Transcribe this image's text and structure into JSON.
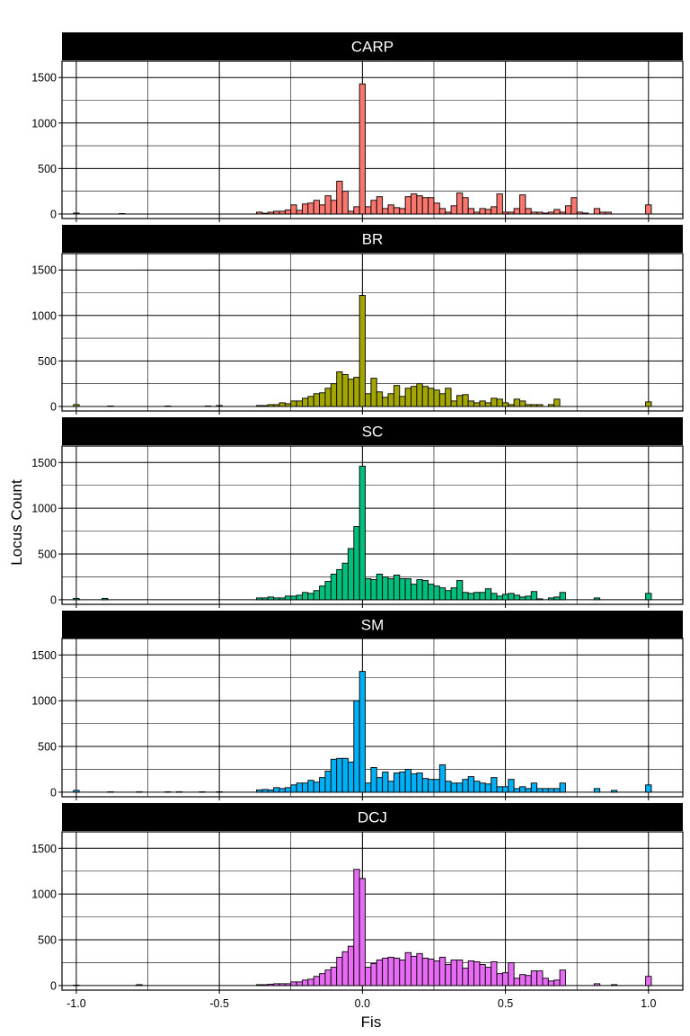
{
  "chart_data": {
    "type": "bar",
    "xlabel": "Fis",
    "ylabel": "Locus Count",
    "xlim": [
      -1.05,
      1.12
    ],
    "ylim": [
      -50,
      1680
    ],
    "x_ticks": [
      -1.0,
      -0.5,
      0.0,
      0.5,
      1.0
    ],
    "x_tick_labels": [
      "-1.0",
      "-0.5",
      "0.0",
      "0.5",
      "1.0"
    ],
    "y_ticks": [
      0,
      500,
      1000,
      1500
    ],
    "y_tick_labels": [
      "0",
      "500",
      "1000",
      "1500"
    ],
    "grid": true,
    "legend": "none",
    "bin_width": 0.02,
    "bin_centers": [
      -1.0,
      -0.98,
      -0.96,
      -0.94,
      -0.92,
      -0.9,
      -0.88,
      -0.86,
      -0.84,
      -0.82,
      -0.8,
      -0.78,
      -0.76,
      -0.74,
      -0.72,
      -0.7,
      -0.68,
      -0.66,
      -0.64,
      -0.62,
      -0.6,
      -0.58,
      -0.56,
      -0.54,
      -0.52,
      -0.5,
      -0.48,
      -0.46,
      -0.44,
      -0.42,
      -0.4,
      -0.38,
      -0.36,
      -0.34,
      -0.32,
      -0.3,
      -0.28,
      -0.26,
      -0.24,
      -0.22,
      -0.2,
      -0.18,
      -0.16,
      -0.14,
      -0.12,
      -0.1,
      -0.08,
      -0.06,
      -0.04,
      -0.02,
      0.0,
      0.02,
      0.04,
      0.06,
      0.08,
      0.1,
      0.12,
      0.14,
      0.16,
      0.18,
      0.2,
      0.22,
      0.24,
      0.26,
      0.28,
      0.3,
      0.32,
      0.34,
      0.36,
      0.38,
      0.4,
      0.42,
      0.44,
      0.46,
      0.48,
      0.5,
      0.52,
      0.54,
      0.56,
      0.58,
      0.6,
      0.62,
      0.64,
      0.66,
      0.68,
      0.7,
      0.72,
      0.74,
      0.76,
      0.78,
      0.8,
      0.82,
      0.84,
      0.86,
      0.88,
      0.9,
      0.92,
      0.94,
      0.96,
      0.98,
      1.0
    ],
    "series": [
      {
        "name": "CARP",
        "color": "#F8766D",
        "values": [
          10,
          0,
          0,
          0,
          0,
          0,
          0,
          0,
          5,
          0,
          0,
          0,
          0,
          0,
          0,
          0,
          0,
          0,
          0,
          0,
          0,
          0,
          0,
          0,
          0,
          0,
          0,
          0,
          0,
          0,
          0,
          0,
          20,
          8,
          20,
          30,
          30,
          45,
          100,
          40,
          110,
          120,
          150,
          100,
          200,
          150,
          360,
          250,
          30,
          80,
          1430,
          80,
          150,
          190,
          60,
          100,
          70,
          60,
          190,
          220,
          200,
          180,
          180,
          120,
          60,
          20,
          90,
          230,
          180,
          60,
          20,
          60,
          50,
          80,
          220,
          20,
          20,
          60,
          210,
          60,
          20,
          20,
          10,
          20,
          50,
          20,
          90,
          180,
          20,
          10,
          0,
          60,
          20,
          20,
          0,
          0,
          0,
          0,
          0,
          0,
          100
        ]
      },
      {
        "name": "BR",
        "color": "#A3A500",
        "values": [
          20,
          0,
          0,
          0,
          0,
          0,
          5,
          0,
          0,
          0,
          0,
          0,
          0,
          0,
          0,
          0,
          5,
          0,
          0,
          0,
          0,
          0,
          0,
          5,
          0,
          10,
          0,
          0,
          0,
          0,
          0,
          0,
          10,
          10,
          20,
          20,
          40,
          30,
          60,
          60,
          90,
          110,
          140,
          150,
          200,
          250,
          380,
          350,
          300,
          320,
          1220,
          140,
          310,
          160,
          100,
          140,
          230,
          110,
          200,
          220,
          250,
          220,
          200,
          180,
          140,
          200,
          60,
          120,
          130,
          60,
          40,
          60,
          40,
          90,
          80,
          40,
          20,
          80,
          60,
          20,
          20,
          20,
          0,
          20,
          80,
          0,
          0,
          0,
          0,
          0,
          0,
          0,
          0,
          0,
          0,
          0,
          0,
          0,
          0,
          0,
          50
        ]
      },
      {
        "name": "SC",
        "color": "#00BF7D",
        "values": [
          15,
          0,
          0,
          0,
          0,
          15,
          0,
          0,
          0,
          0,
          0,
          0,
          0,
          0,
          0,
          0,
          0,
          0,
          0,
          0,
          0,
          0,
          0,
          0,
          0,
          0,
          0,
          0,
          0,
          0,
          0,
          0,
          20,
          20,
          30,
          20,
          20,
          40,
          40,
          50,
          80,
          70,
          100,
          150,
          200,
          280,
          330,
          400,
          560,
          800,
          1460,
          230,
          220,
          280,
          250,
          230,
          270,
          230,
          230,
          170,
          220,
          210,
          170,
          150,
          130,
          100,
          130,
          210,
          80,
          70,
          80,
          80,
          120,
          70,
          40,
          60,
          70,
          50,
          30,
          40,
          90,
          10,
          0,
          20,
          30,
          80,
          0,
          0,
          0,
          0,
          0,
          20,
          0,
          0,
          0,
          0,
          0,
          0,
          0,
          0,
          70
        ]
      },
      {
        "name": "SM",
        "color": "#00B0F6",
        "values": [
          20,
          0,
          0,
          0,
          0,
          0,
          5,
          0,
          0,
          0,
          0,
          5,
          0,
          0,
          0,
          0,
          5,
          0,
          5,
          0,
          0,
          0,
          5,
          0,
          0,
          5,
          0,
          0,
          0,
          0,
          0,
          0,
          25,
          30,
          25,
          50,
          40,
          50,
          80,
          100,
          100,
          130,
          110,
          160,
          230,
          360,
          370,
          370,
          330,
          1000,
          1320,
          100,
          270,
          160,
          220,
          120,
          210,
          220,
          250,
          200,
          210,
          150,
          140,
          140,
          300,
          120,
          100,
          100,
          140,
          170,
          120,
          100,
          90,
          160,
          60,
          60,
          140,
          40,
          60,
          40,
          100,
          40,
          40,
          40,
          40,
          100,
          0,
          0,
          0,
          0,
          0,
          40,
          0,
          0,
          20,
          0,
          0,
          0,
          0,
          0,
          80
        ]
      },
      {
        "name": "DCJ",
        "color": "#E76BF3",
        "values": [
          5,
          0,
          0,
          0,
          0,
          0,
          0,
          0,
          0,
          0,
          0,
          10,
          0,
          0,
          0,
          0,
          0,
          0,
          0,
          0,
          0,
          0,
          0,
          0,
          0,
          0,
          0,
          0,
          0,
          0,
          0,
          0,
          10,
          10,
          15,
          20,
          20,
          20,
          40,
          40,
          60,
          70,
          100,
          130,
          170,
          200,
          310,
          370,
          430,
          1270,
          1170,
          200,
          240,
          280,
          300,
          310,
          300,
          280,
          360,
          320,
          350,
          300,
          290,
          270,
          310,
          230,
          280,
          280,
          190,
          270,
          260,
          230,
          200,
          260,
          130,
          140,
          250,
          80,
          120,
          110,
          160,
          160,
          80,
          50,
          60,
          170,
          0,
          0,
          0,
          0,
          0,
          20,
          0,
          0,
          10,
          0,
          0,
          0,
          0,
          0,
          100
        ]
      }
    ]
  }
}
